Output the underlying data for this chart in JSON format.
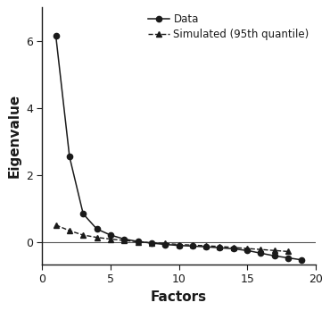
{
  "factors": [
    1,
    2,
    3,
    4,
    5,
    6,
    7,
    8,
    9,
    10,
    11,
    12,
    13,
    14,
    15,
    16,
    17,
    18,
    19
  ],
  "data_eigenvalues": [
    6.15,
    2.55,
    0.85,
    0.4,
    0.22,
    0.1,
    0.03,
    -0.02,
    -0.06,
    -0.09,
    -0.11,
    -0.13,
    -0.16,
    -0.19,
    -0.24,
    -0.32,
    -0.4,
    -0.46,
    -0.52
  ],
  "simulated_eigenvalues": [
    0.52,
    0.35,
    0.22,
    0.15,
    0.1,
    0.06,
    0.02,
    -0.01,
    -0.03,
    -0.06,
    -0.08,
    -0.1,
    -0.12,
    -0.15,
    -0.18,
    -0.21,
    -0.24,
    -0.27,
    null
  ],
  "xlabel": "Factors",
  "ylabel": "Eigenvalue",
  "xlim": [
    0,
    20
  ],
  "ylim": [
    -0.65,
    7.0
  ],
  "yticks": [
    0,
    2,
    4,
    6
  ],
  "xticks": [
    0,
    5,
    10,
    15,
    20
  ],
  "hline_y": 0,
  "line_color": "#1a1a1a",
  "bg_color": "#ffffff",
  "legend_data_label": "Data",
  "legend_sim_label": "Simulated (95th quantile)",
  "axis_label_fontsize": 11,
  "tick_fontsize": 9,
  "legend_fontsize": 8.5
}
